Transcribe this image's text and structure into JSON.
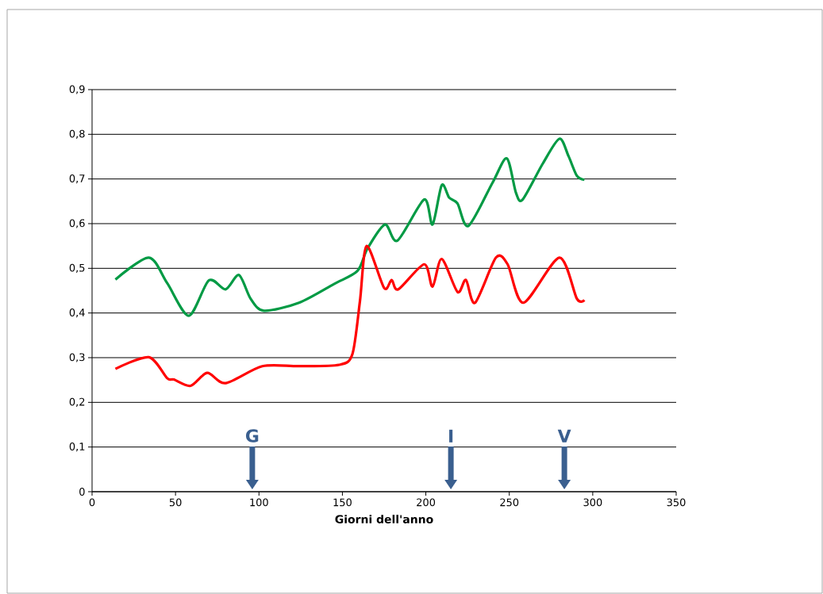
{
  "chart_data": {
    "type": "line",
    "xlabel": "Giorni dell'anno",
    "xlim": [
      0,
      350
    ],
    "xticks": [
      0,
      50,
      100,
      150,
      200,
      250,
      300,
      350
    ],
    "ylim": [
      0,
      0.9
    ],
    "yticks": [
      {
        "value": 0,
        "label": "0"
      },
      {
        "value": 0.1,
        "label": "0,1"
      },
      {
        "value": 0.2,
        "label": "0,2"
      },
      {
        "value": 0.3,
        "label": "0,3"
      },
      {
        "value": 0.4,
        "label": "0,4"
      },
      {
        "value": 0.5,
        "label": "0,5"
      },
      {
        "value": 0.6,
        "label": "0,6"
      },
      {
        "value": 0.7,
        "label": "0,7"
      },
      {
        "value": 0.8,
        "label": "0,8"
      },
      {
        "value": 0.9,
        "label": "0,9"
      }
    ],
    "grid": "y",
    "legend": false,
    "marker": "none",
    "line_style": "solid",
    "series": [
      {
        "color": "#009a44",
        "x": [
          14,
          34,
          45,
          58,
          70,
          80,
          88,
          95,
          103,
          124,
          145,
          159,
          165,
          175.5,
          183,
          199,
          204,
          209.5,
          214,
          219,
          225.5,
          240,
          248.5,
          254,
          258,
          270,
          280,
          285.5,
          290.5,
          295
        ],
        "values": [
          0.475,
          0.524,
          0.467,
          0.394,
          0.473,
          0.453,
          0.485,
          0.432,
          0.405,
          0.423,
          0.465,
          0.494,
          0.544,
          0.598,
          0.562,
          0.654,
          0.598,
          0.686,
          0.658,
          0.645,
          0.595,
          0.692,
          0.746,
          0.669,
          0.654,
          0.734,
          0.79,
          0.751,
          0.707,
          0.698
        ]
      },
      {
        "color": "#ff0000",
        "x": [
          14,
          34,
          45,
          49,
          59,
          69,
          80,
          102,
          124,
          148,
          156,
          160.5,
          164.5,
          175,
          179.5,
          183.5,
          199,
          204,
          209.5,
          219,
          224,
          229.5,
          242,
          249,
          258.5,
          280,
          290.5,
          295
        ],
        "values": [
          0.275,
          0.301,
          0.254,
          0.251,
          0.237,
          0.266,
          0.243,
          0.281,
          0.281,
          0.284,
          0.308,
          0.426,
          0.55,
          0.456,
          0.474,
          0.453,
          0.509,
          0.459,
          0.521,
          0.447,
          0.474,
          0.423,
          0.524,
          0.509,
          0.423,
          0.524,
          0.432,
          0.429
        ]
      }
    ],
    "ref_lines": [
      {
        "axis": "x",
        "value": 96,
        "label": "G",
        "color": "#3a5f8f"
      },
      {
        "axis": "x",
        "value": 215,
        "label": "I",
        "color": "#3a5f8f"
      },
      {
        "axis": "x",
        "value": 283,
        "label": "V",
        "color": "#3a5f8f"
      }
    ]
  }
}
